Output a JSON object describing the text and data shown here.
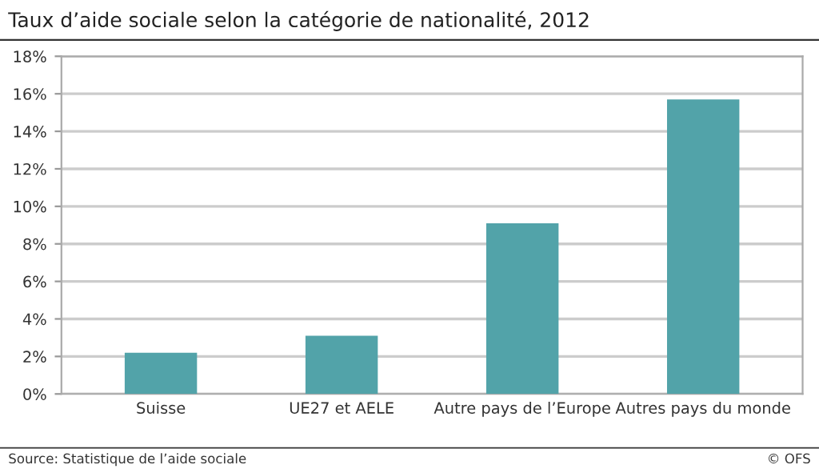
{
  "chart_data": {
    "type": "bar",
    "title": "Taux d’aide sociale selon la catégorie de nationalité, 2012",
    "categories": [
      "Suisse",
      "UE27 et AELE",
      "Autre pays de l’Europe",
      "Autres pays du monde"
    ],
    "values": [
      2.2,
      3.1,
      9.1,
      15.7
    ],
    "color": "#52a3a9",
    "ylim": [
      0,
      18
    ],
    "yticks": [
      {
        "value": 0,
        "label": "0%"
      },
      {
        "value": 2,
        "label": "2%"
      },
      {
        "value": 4,
        "label": "4%"
      },
      {
        "value": 6,
        "label": "6%"
      },
      {
        "value": 8,
        "label": "8%"
      },
      {
        "value": 10,
        "label": "10%"
      },
      {
        "value": 12,
        "label": "12%"
      },
      {
        "value": 14,
        "label": "14%"
      },
      {
        "value": 16,
        "label": "16%"
      },
      {
        "value": 18,
        "label": "18%"
      }
    ],
    "grid": "y",
    "annotations": [
      "Source: Statistique de l’aide sociale",
      "© OFS"
    ]
  }
}
